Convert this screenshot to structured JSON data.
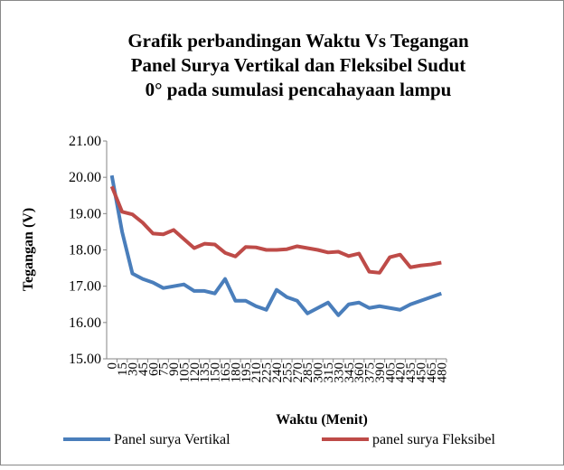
{
  "chart_data": {
    "type": "line",
    "title": [
      "Grafik perbandingan Waktu Vs Tegangan",
      "Panel Surya Vertikal dan Fleksibel Sudut",
      "0° pada sumulasi pencahayaan lampu"
    ],
    "x_label": "Waktu (Menit)",
    "y_label": "Tegangan (V)",
    "categories": [
      "0",
      "15",
      "30",
      "45",
      "60",
      "75",
      "90",
      "105",
      "120",
      "135",
      "150",
      "165",
      "180",
      "195",
      "210",
      "225",
      "240",
      "255",
      "270",
      "285",
      "300",
      "315",
      "330",
      "345",
      "360",
      "375",
      "390",
      "405",
      "420",
      "435",
      "450",
      "465",
      "480"
    ],
    "series": [
      {
        "name": "Panel surya Vertikal",
        "color": "#4a7ebb",
        "values": [
          20.05,
          18.5,
          17.35,
          17.2,
          17.1,
          16.95,
          17.0,
          17.05,
          16.87,
          16.87,
          16.8,
          17.2,
          16.6,
          16.6,
          16.45,
          16.35,
          16.9,
          16.7,
          16.6,
          16.25,
          16.4,
          16.55,
          16.2,
          16.5,
          16.55,
          16.4,
          16.45,
          16.4,
          16.35,
          16.5,
          16.6,
          16.7,
          16.8
        ]
      },
      {
        "name": "panel surya Fleksibel",
        "color": "#be4b48",
        "values": [
          19.75,
          19.05,
          18.98,
          18.75,
          18.45,
          18.43,
          18.55,
          18.3,
          18.05,
          18.17,
          18.15,
          17.92,
          17.82,
          18.08,
          18.07,
          18.0,
          18.0,
          18.02,
          18.1,
          18.05,
          18.0,
          17.93,
          17.95,
          17.83,
          17.9,
          17.4,
          17.37,
          17.8,
          17.87,
          17.52,
          17.57,
          17.6,
          17.65
        ]
      }
    ],
    "ylim": [
      15,
      21
    ],
    "yticks": [
      {
        "value": 15,
        "label": "15.00"
      },
      {
        "value": 16,
        "label": "16.00"
      },
      {
        "value": 17,
        "label": "17.00"
      },
      {
        "value": 18,
        "label": "18.00"
      },
      {
        "value": 19,
        "label": "19.00"
      },
      {
        "value": 20,
        "label": "20.00"
      },
      {
        "value": 21,
        "label": "21.00"
      }
    ],
    "grid": false,
    "legend": "bottom"
  }
}
